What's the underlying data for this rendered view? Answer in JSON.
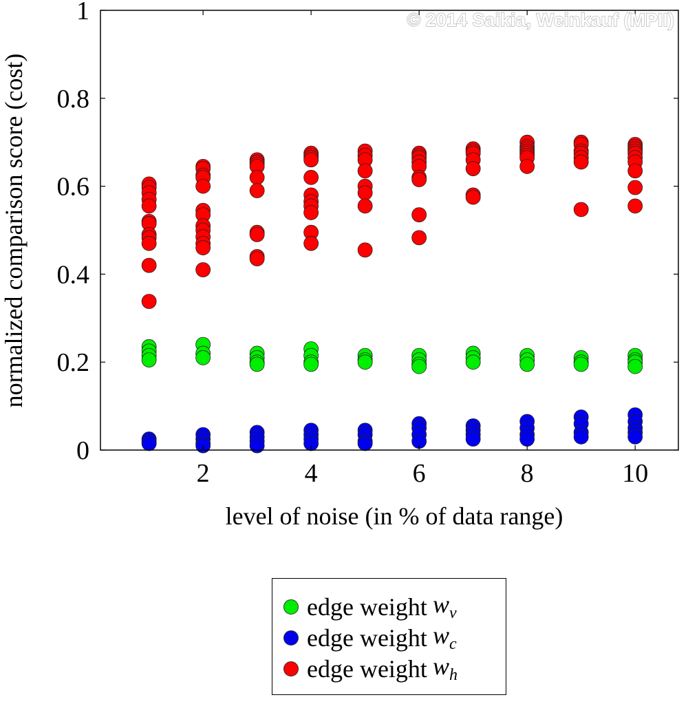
{
  "chart_data": {
    "type": "scatter",
    "title": "",
    "xlabel": "level of noise (in % of data range)",
    "ylabel": "normalized comparison score (cost)",
    "xlim": [
      0.1,
      10.8
    ],
    "ylim": [
      0,
      1
    ],
    "xticks": [
      "2",
      "4",
      "6",
      "8",
      "10"
    ],
    "xtick_values": [
      2,
      4,
      6,
      8,
      10
    ],
    "yticks": [
      "0",
      "0.2",
      "0.4",
      "0.6",
      "0.8",
      "1"
    ],
    "ytick_values": [
      0,
      0.2,
      0.4,
      0.6,
      0.8,
      1
    ],
    "grid": false,
    "legend_placement": "bottom (below chart)",
    "watermark": "© 2014 Saikia, Weinkauf (MPII)",
    "series": [
      {
        "name": "edge weight w_v",
        "label": "edge weight ",
        "symbol": "w",
        "sub": "v",
        "color": "#00ee00",
        "points": [
          [
            1,
            0.235
          ],
          [
            1,
            0.225
          ],
          [
            1,
            0.215
          ],
          [
            1,
            0.205
          ],
          [
            2,
            0.24
          ],
          [
            2,
            0.22
          ],
          [
            2,
            0.21
          ],
          [
            3,
            0.22
          ],
          [
            3,
            0.21
          ],
          [
            3,
            0.2
          ],
          [
            3,
            0.195
          ],
          [
            4,
            0.23
          ],
          [
            4,
            0.215
          ],
          [
            4,
            0.2
          ],
          [
            4,
            0.195
          ],
          [
            5,
            0.215
          ],
          [
            5,
            0.205
          ],
          [
            5,
            0.2
          ],
          [
            6,
            0.215
          ],
          [
            6,
            0.205
          ],
          [
            6,
            0.195
          ],
          [
            6,
            0.19
          ],
          [
            7,
            0.22
          ],
          [
            7,
            0.21
          ],
          [
            7,
            0.2
          ],
          [
            8,
            0.215
          ],
          [
            8,
            0.205
          ],
          [
            8,
            0.195
          ],
          [
            9,
            0.21
          ],
          [
            9,
            0.2
          ],
          [
            9,
            0.195
          ],
          [
            10,
            0.215
          ],
          [
            10,
            0.205
          ],
          [
            10,
            0.2
          ],
          [
            10,
            0.19
          ]
        ]
      },
      {
        "name": "edge weight w_c",
        "label": "edge weight ",
        "symbol": "w",
        "sub": "c",
        "color": "#0000ee",
        "points": [
          [
            1,
            0.025
          ],
          [
            1,
            0.02
          ],
          [
            1,
            0.015
          ],
          [
            2,
            0.035
          ],
          [
            2,
            0.025
          ],
          [
            2,
            0.015
          ],
          [
            2,
            0.01
          ],
          [
            3,
            0.04
          ],
          [
            3,
            0.03
          ],
          [
            3,
            0.02
          ],
          [
            3,
            0.01
          ],
          [
            4,
            0.045
          ],
          [
            4,
            0.035
          ],
          [
            4,
            0.025
          ],
          [
            4,
            0.015
          ],
          [
            5,
            0.045
          ],
          [
            5,
            0.035
          ],
          [
            5,
            0.02
          ],
          [
            5,
            0.015
          ],
          [
            6,
            0.06
          ],
          [
            6,
            0.05
          ],
          [
            6,
            0.035
          ],
          [
            6,
            0.02
          ],
          [
            7,
            0.055
          ],
          [
            7,
            0.045
          ],
          [
            7,
            0.035
          ],
          [
            7,
            0.025
          ],
          [
            8,
            0.065
          ],
          [
            8,
            0.05
          ],
          [
            8,
            0.035
          ],
          [
            8,
            0.025
          ],
          [
            9,
            0.075
          ],
          [
            9,
            0.06
          ],
          [
            9,
            0.04
          ],
          [
            9,
            0.03
          ],
          [
            10,
            0.08
          ],
          [
            10,
            0.065
          ],
          [
            10,
            0.05
          ],
          [
            10,
            0.04
          ],
          [
            10,
            0.03
          ]
        ]
      },
      {
        "name": "edge weight w_h",
        "label": "edge weight ",
        "symbol": "w",
        "sub": "h",
        "color": "#ff0000",
        "points": [
          [
            1,
            0.605
          ],
          [
            1,
            0.597
          ],
          [
            1,
            0.585
          ],
          [
            1,
            0.57
          ],
          [
            1,
            0.555
          ],
          [
            1,
            0.52
          ],
          [
            1,
            0.515
          ],
          [
            1,
            0.49
          ],
          [
            1,
            0.483
          ],
          [
            1,
            0.47
          ],
          [
            1,
            0.42
          ],
          [
            1,
            0.338
          ],
          [
            2,
            0.645
          ],
          [
            2,
            0.64
          ],
          [
            2,
            0.625
          ],
          [
            2,
            0.62
          ],
          [
            2,
            0.6
          ],
          [
            2,
            0.545
          ],
          [
            2,
            0.535
          ],
          [
            2,
            0.51
          ],
          [
            2,
            0.5
          ],
          [
            2,
            0.485
          ],
          [
            2,
            0.47
          ],
          [
            2,
            0.46
          ],
          [
            2,
            0.41
          ],
          [
            3,
            0.66
          ],
          [
            3,
            0.655
          ],
          [
            3,
            0.65
          ],
          [
            3,
            0.645
          ],
          [
            3,
            0.62
          ],
          [
            3,
            0.59
          ],
          [
            3,
            0.495
          ],
          [
            3,
            0.49
          ],
          [
            3,
            0.44
          ],
          [
            3,
            0.435
          ],
          [
            4,
            0.675
          ],
          [
            4,
            0.67
          ],
          [
            4,
            0.665
          ],
          [
            4,
            0.66
          ],
          [
            4,
            0.62
          ],
          [
            4,
            0.58
          ],
          [
            4,
            0.565
          ],
          [
            4,
            0.555
          ],
          [
            4,
            0.54
          ],
          [
            4,
            0.495
          ],
          [
            4,
            0.47
          ],
          [
            5,
            0.68
          ],
          [
            5,
            0.67
          ],
          [
            5,
            0.66
          ],
          [
            5,
            0.635
          ],
          [
            5,
            0.6
          ],
          [
            5,
            0.585
          ],
          [
            5,
            0.555
          ],
          [
            5,
            0.455
          ],
          [
            6,
            0.675
          ],
          [
            6,
            0.67
          ],
          [
            6,
            0.665
          ],
          [
            6,
            0.655
          ],
          [
            6,
            0.645
          ],
          [
            6,
            0.62
          ],
          [
            6,
            0.615
          ],
          [
            6,
            0.535
          ],
          [
            6,
            0.483
          ],
          [
            7,
            0.685
          ],
          [
            7,
            0.68
          ],
          [
            7,
            0.675
          ],
          [
            7,
            0.66
          ],
          [
            7,
            0.64
          ],
          [
            7,
            0.58
          ],
          [
            7,
            0.575
          ],
          [
            8,
            0.7
          ],
          [
            8,
            0.69
          ],
          [
            8,
            0.685
          ],
          [
            8,
            0.68
          ],
          [
            8,
            0.675
          ],
          [
            8,
            0.67
          ],
          [
            8,
            0.665
          ],
          [
            8,
            0.645
          ],
          [
            9,
            0.7
          ],
          [
            9,
            0.695
          ],
          [
            9,
            0.68
          ],
          [
            9,
            0.675
          ],
          [
            9,
            0.665
          ],
          [
            9,
            0.655
          ],
          [
            9,
            0.547
          ],
          [
            10,
            0.695
          ],
          [
            10,
            0.69
          ],
          [
            10,
            0.685
          ],
          [
            10,
            0.68
          ],
          [
            10,
            0.675
          ],
          [
            10,
            0.665
          ],
          [
            10,
            0.655
          ],
          [
            10,
            0.635
          ],
          [
            10,
            0.597
          ],
          [
            10,
            0.555
          ]
        ]
      }
    ]
  }
}
